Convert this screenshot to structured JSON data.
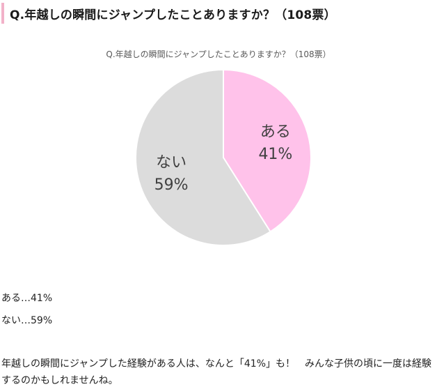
{
  "heading": {
    "title": "Q.年越しの瞬間にジャンプしたことありますか？（108票）"
  },
  "chart_data": {
    "type": "pie",
    "title": "Q.年越しの瞬間にジャンプしたことありますか？（108票）",
    "slices": [
      {
        "label": "ある",
        "value": 41,
        "value_label": "41%",
        "color": "#ffc2ea"
      },
      {
        "label": "ない",
        "value": 59,
        "value_label": "59%",
        "color": "#dcdcdc"
      }
    ],
    "legend": "none"
  },
  "results": [
    {
      "text": "ある…41%"
    },
    {
      "text": "ない…59%"
    }
  ],
  "body": {
    "paragraph": "年越しの瞬間にジャンプした経験がある人は、なんと「41%」も！　みんな子供の頃に一度は経験するのかもしれませんね。"
  }
}
